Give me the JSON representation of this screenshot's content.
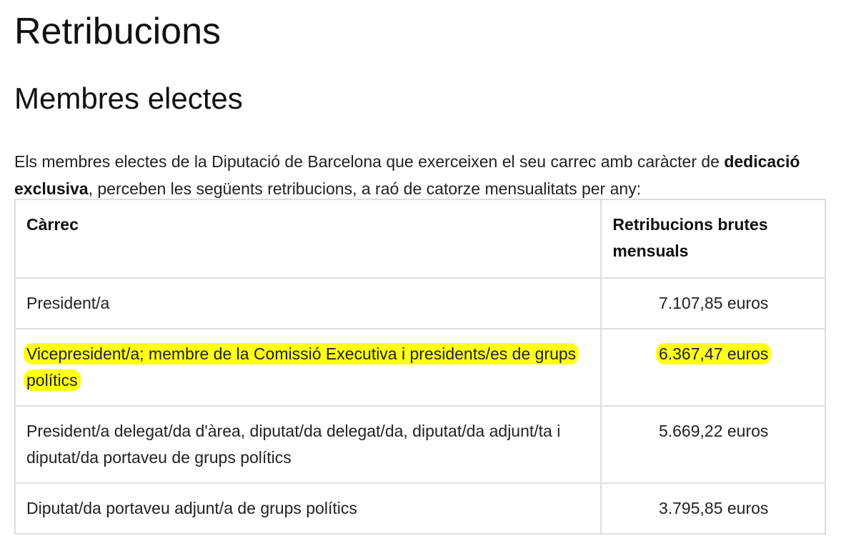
{
  "page": {
    "title": "Retribucions",
    "subtitle": "Membres electes",
    "intro": {
      "before_bold": "Els membres electes de la Diputació de Barcelona que exerceixen el seu carrec amb caràcter de ",
      "bold": "dedicació exclusiva",
      "after_bold": ", perceben les següents retribucions, a raó de catorze mensualitats per any:"
    }
  },
  "table": {
    "headers": [
      "Càrrec",
      "Retribucions brutes mensuals"
    ],
    "rows": [
      {
        "position": "President/a",
        "amount": "7.107,85 euros",
        "highlighted": false
      },
      {
        "position": "Vicepresident/a; membre de la Comissió Executiva i presidents/es de grups polítics",
        "amount": "6.367,47 euros",
        "highlighted": true
      },
      {
        "position": "President/a delegat/da d'àrea, diputat/da delegat/da, diputat/da adjunt/ta i diputat/da portaveu de grups polítics",
        "amount": "5.669,22 euros",
        "highlighted": false
      },
      {
        "position": "Diputat/da portaveu adjunt/a de grups polítics",
        "amount": "3.795,85 euros",
        "highlighted": false
      }
    ]
  },
  "colors": {
    "highlight": "#ffff1a",
    "border": "#dedede",
    "text": "#111111"
  }
}
